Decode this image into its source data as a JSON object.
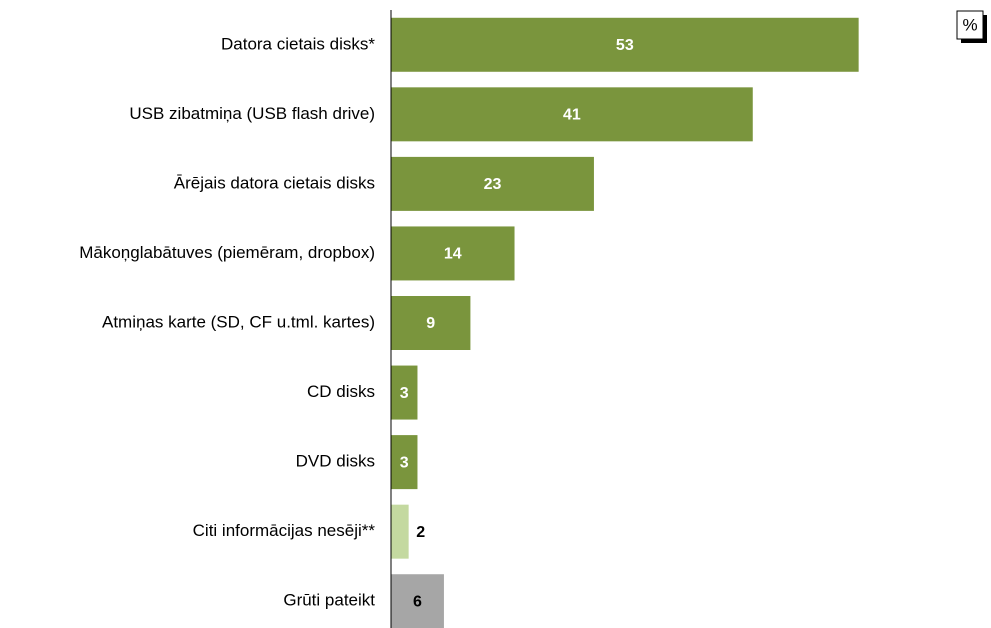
{
  "chart_data": {
    "type": "hbar",
    "unit": "%",
    "categories": [
      "Datora cietais disks*",
      "USB zibatmiņa (USB flash drive)",
      "Ārējais datora cietais disks",
      "Mākoņglabātuves (piemēram, dropbox)",
      "Atmiņas karte (SD, CF u.tml. kartes)",
      "CD disks",
      "DVD disks",
      "Citi informācijas nesēji**",
      "Grūti pateikt"
    ],
    "values": [
      53,
      41,
      23,
      14,
      9,
      3,
      3,
      2,
      6
    ],
    "colors": [
      "#7a953d",
      "#7a953d",
      "#7a953d",
      "#7a953d",
      "#7a953d",
      "#7a953d",
      "#7a953d",
      "#c4d9a0",
      "#a6a6a6"
    ],
    "label_colors": [
      "#ffffff",
      "#ffffff",
      "#ffffff",
      "#ffffff",
      "#ffffff",
      "#ffffff",
      "#ffffff",
      "#000000",
      "#000000"
    ],
    "xlim": [
      0,
      68
    ]
  }
}
